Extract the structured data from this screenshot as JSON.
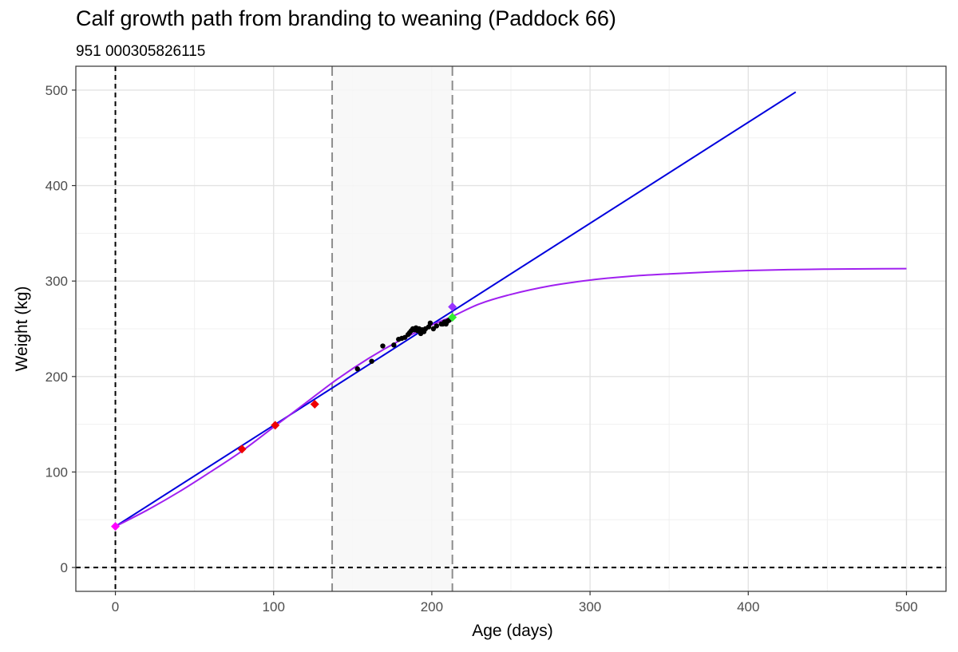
{
  "chart_data": {
    "type": "line",
    "title": "Calf growth path from branding to weaning (Paddock 66)",
    "subtitle": "951 000305826115",
    "xlabel": "Age (days)",
    "ylabel": "Weight (kg)",
    "xlim": [
      -25,
      525
    ],
    "ylim": [
      -25,
      525
    ],
    "x_ticks": [
      0,
      100,
      200,
      300,
      400,
      500
    ],
    "y_ticks": [
      0,
      100,
      200,
      300,
      400,
      500
    ],
    "grid": true,
    "legend": "none",
    "shaded_region": {
      "x_start": 137,
      "x_end": 213,
      "color": "#f7f7f7"
    },
    "reference_lines": [
      {
        "orientation": "vertical",
        "value": 0,
        "style": "dashed",
        "color": "#000000"
      },
      {
        "orientation": "horizontal",
        "value": 0,
        "style": "dashed",
        "color": "#000000"
      },
      {
        "orientation": "vertical",
        "value": 137,
        "style": "dashed",
        "color": "#8c8c8c"
      },
      {
        "orientation": "vertical",
        "value": 213,
        "style": "dashed",
        "color": "#8c8c8c"
      }
    ],
    "series": [
      {
        "type": "line",
        "color": "#0000dd",
        "x": [
          0,
          430
        ],
        "y": [
          43,
          498
        ]
      },
      {
        "type": "line",
        "color": "#a020f0",
        "x": [
          0,
          20,
          40,
          60,
          80,
          100,
          120,
          140,
          160,
          180,
          200,
          213,
          230,
          250,
          275,
          300,
          325,
          350,
          375,
          400,
          425,
          450,
          475,
          500
        ],
        "y": [
          43,
          60,
          79,
          100,
          122,
          147,
          172,
          197,
          219,
          238,
          254,
          263,
          276,
          286,
          295,
          301,
          305,
          307.5,
          309.5,
          311,
          312,
          312.5,
          312.8,
          313
        ]
      },
      {
        "type": "scatter",
        "marker": "circle",
        "color": "#000000",
        "x": [
          153,
          162,
          169,
          176,
          179,
          181,
          183,
          185,
          186,
          187,
          188,
          189,
          190,
          191,
          192,
          193,
          194,
          195,
          196,
          198,
          199,
          201,
          203,
          206,
          207,
          208,
          209,
          210,
          211
        ],
        "y": [
          208,
          216,
          232,
          233,
          239,
          240,
          241,
          244,
          246,
          248,
          250,
          249,
          251,
          248,
          250,
          245,
          249,
          247,
          250,
          252,
          256,
          250,
          253,
          255,
          255,
          257,
          255,
          258,
          259
        ]
      },
      {
        "type": "scatter",
        "marker": "diamond",
        "color": "#ee0000",
        "x": [
          80,
          101,
          126
        ],
        "y": [
          124,
          149,
          171
        ]
      },
      {
        "type": "scatter",
        "marker": "diamond",
        "color": "#ff00ff",
        "x": [
          0
        ],
        "y": [
          43
        ]
      },
      {
        "type": "scatter",
        "marker": "diamond",
        "color": "#9933ff",
        "x": [
          213
        ],
        "y": [
          273
        ]
      },
      {
        "type": "scatter",
        "marker": "diamond",
        "color": "#33ee33",
        "x": [
          213
        ],
        "y": [
          262
        ]
      }
    ]
  }
}
